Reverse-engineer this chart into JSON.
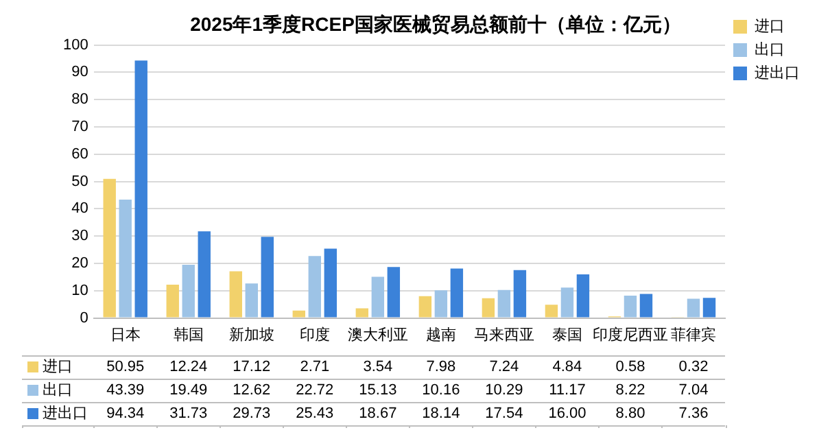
{
  "chart_data": {
    "type": "bar",
    "title": "2025年1季度RCEP国家医械贸易总额前十（单位：亿元）",
    "categories": [
      "日本",
      "韩国",
      "新加坡",
      "印度",
      "澳大利亚",
      "越南",
      "马来西亚",
      "泰国",
      "印度尼西亚",
      "菲律宾"
    ],
    "series": [
      {
        "name": "进口",
        "color": "#f2d16b",
        "values": [
          50.95,
          12.24,
          17.12,
          2.71,
          3.54,
          7.98,
          7.24,
          4.84,
          0.58,
          0.32
        ],
        "value_labels": [
          "50.95",
          "12.24",
          "17.12",
          "2.71",
          "3.54",
          "7.98",
          "7.24",
          "4.84",
          "0.58",
          "0.32"
        ]
      },
      {
        "name": "出口",
        "color": "#9dc3e6",
        "values": [
          43.39,
          19.49,
          12.62,
          22.72,
          15.13,
          10.16,
          10.29,
          11.17,
          8.22,
          7.04
        ],
        "value_labels": [
          "43.39",
          "19.49",
          "12.62",
          "22.72",
          "15.13",
          "10.16",
          "10.29",
          "11.17",
          "8.22",
          "7.04"
        ]
      },
      {
        "name": "进出口",
        "color": "#3b82d9",
        "values": [
          94.34,
          31.73,
          29.73,
          25.43,
          18.67,
          18.14,
          17.54,
          16.0,
          8.8,
          7.36
        ],
        "value_labels": [
          "94.34",
          "31.73",
          "29.73",
          "25.43",
          "18.67",
          "18.14",
          "17.54",
          "16.00",
          "8.80",
          "7.36"
        ]
      }
    ],
    "ylim": [
      0,
      100
    ],
    "yticks": [
      0,
      10,
      20,
      30,
      40,
      50,
      60,
      70,
      80,
      90,
      100
    ],
    "grid": "y",
    "legend": "right"
  }
}
